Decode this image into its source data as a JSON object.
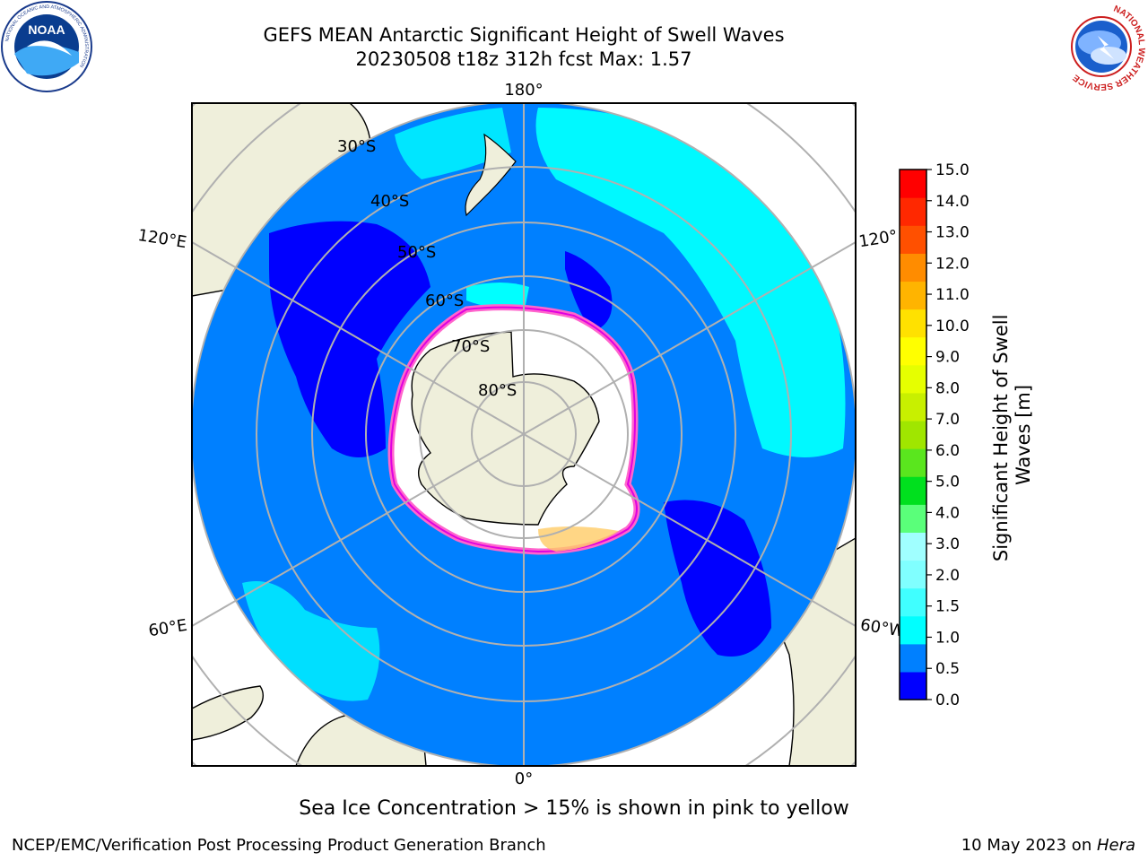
{
  "title": {
    "line1": "GEFS MEAN Antarctic Significant Height of Swell Waves",
    "line2": "20230508 t18z 312h fcst   Max: 1.57"
  },
  "map": {
    "projection": "south-polar-stereographic",
    "longitude_labels": [
      "180°",
      "120°E",
      "120°",
      "60°E",
      "60°W",
      "0°"
    ],
    "latitude_labels": [
      "30°S",
      "40°S",
      "50°S",
      "60°S",
      "70°S",
      "80°S"
    ],
    "colors": {
      "ocean_dark_blue": "#0000ff",
      "ocean_blue": "#0080ff",
      "cyan": "#00ffff",
      "land": "#efefdb",
      "ice": "#ffffff",
      "ice_edge_pink": "#ff66cc",
      "ice_edge_magenta": "#e000e0",
      "ice_yellow": "#ffcc66",
      "grid": "#b0b0b0"
    }
  },
  "colorbar": {
    "label": "Significant Height of Swell Waves [m]",
    "ticks": [
      "0.0",
      "0.5",
      "1.0",
      "1.5",
      "2.0",
      "3.0",
      "4.0",
      "5.0",
      "6.0",
      "7.0",
      "8.0",
      "9.0",
      "10.0",
      "11.0",
      "12.0",
      "13.0",
      "14.0",
      "15.0"
    ],
    "colors": [
      "#0000ff",
      "#0080ff",
      "#00ffff",
      "#40ffff",
      "#80ffff",
      "#a0ffff",
      "#5aff7a",
      "#00e01e",
      "#5ae61e",
      "#a0e600",
      "#c8f000",
      "#e6ff00",
      "#ffff00",
      "#ffe100",
      "#ffb400",
      "#ff8c00",
      "#ff5000",
      "#ff2800",
      "#ff0000"
    ]
  },
  "logos": {
    "left_text": "NOAA",
    "left_ring": "NATIONAL OCEANIC AND ATMOSPHERIC ADMINISTRATION",
    "left_ring_bottom": "U.S. DEPARTMENT OF COMMERCE",
    "right_ring": "NATIONAL WEATHER SERVICE"
  },
  "footer": {
    "ice_note": "Sea Ice Concentration > 15% is shown in pink to yellow",
    "left": "NCEP/EMC/Verification Post Processing Product Generation Branch",
    "date": "10 May 2023 on ",
    "machine": "Hera"
  }
}
